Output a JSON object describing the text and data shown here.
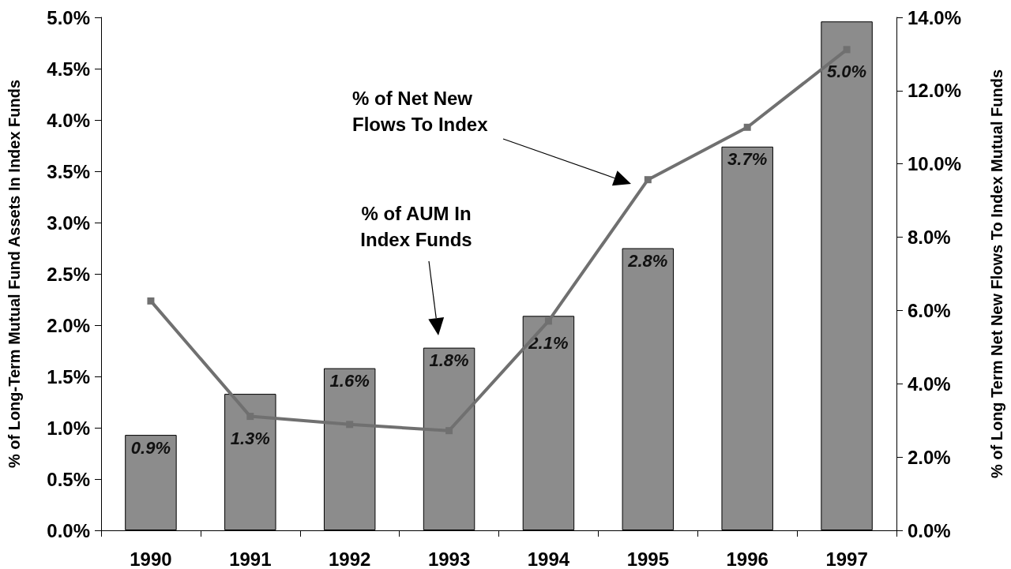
{
  "chart_data": {
    "type": "bar",
    "ylabel": "% of Long-Term Mutual Fund Assets In Index Funds",
    "y2label": "% of Long Term Net New Flows To Index Mutual Funds",
    "annotations": [
      "% of Net New Flows To Index",
      "% of AUM In Index Funds"
    ],
    "categories": [
      "1990",
      "1991",
      "1992",
      "1993",
      "1994",
      "1995",
      "1996",
      "1997"
    ],
    "series": [
      {
        "color": "#8c8c8c",
        "values": [
          0.93,
          1.33,
          1.58,
          1.78,
          2.09,
          2.75,
          3.74,
          4.96
        ],
        "value_labels": [
          "0.9%",
          "1.3%",
          "1.6%",
          "1.8%",
          "2.1%",
          "2.8%",
          "3.7%",
          "5.0%"
        ]
      },
      {
        "type": "line",
        "axis": "y2",
        "color": "#707070",
        "marker": "square",
        "values": [
          6.26,
          3.11,
          2.89,
          2.72,
          5.71,
          9.57,
          11.0,
          13.12
        ]
      }
    ],
    "ylim": [
      0,
      5
    ],
    "yticks": [
      {
        "value": 0,
        "label": "0.0%"
      },
      {
        "value": 0.5,
        "label": "0.5%"
      },
      {
        "value": 1,
        "label": "1.0%"
      },
      {
        "value": 1.5,
        "label": "1.5%"
      },
      {
        "value": 2,
        "label": "2.0%"
      },
      {
        "value": 2.5,
        "label": "2.5%"
      },
      {
        "value": 3,
        "label": "3.0%"
      },
      {
        "value": 3.5,
        "label": "3.5%"
      },
      {
        "value": 4,
        "label": "4.0%"
      },
      {
        "value": 4.5,
        "label": "4.5%"
      },
      {
        "value": 5,
        "label": "5.0%"
      }
    ],
    "y2lim": [
      0,
      14
    ],
    "y2ticks": [
      {
        "value": 0,
        "label": "0.0%"
      },
      {
        "value": 2,
        "label": "2.0%"
      },
      {
        "value": 4,
        "label": "4.0%"
      },
      {
        "value": 6,
        "label": "6.0%"
      },
      {
        "value": 8,
        "label": "8.0%"
      },
      {
        "value": 10,
        "label": "10.0%"
      },
      {
        "value": 12,
        "label": "12.0%"
      },
      {
        "value": 14,
        "label": "14.0%"
      }
    ],
    "grid": false
  }
}
